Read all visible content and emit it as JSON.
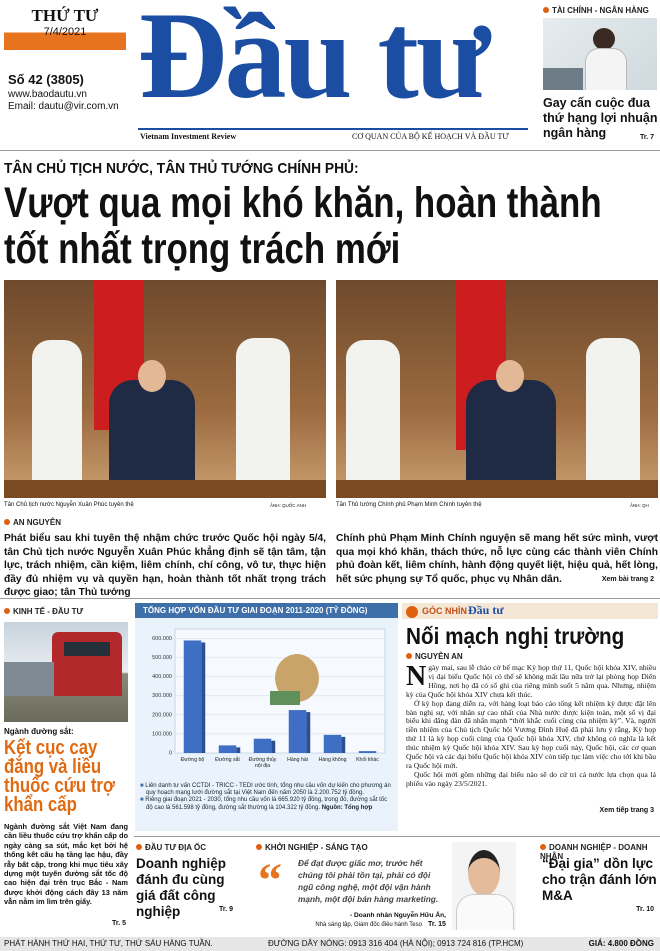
{
  "masthead": {
    "day": "THỨ TƯ",
    "date": "7/4/2021",
    "issue": "Số 42 (3805)",
    "website": "www.baodautu.vn",
    "email": "Email: dautu@vir.com.vn",
    "title": "Đầu tư",
    "subtitle_en": "Vietnam Investment Review",
    "agency": "CƠ QUAN CỦA BỘ KẾ HOẠCH VÀ ĐẦU TƯ"
  },
  "teaser": {
    "section": "TÀI CHÍNH - NGÂN HÀNG",
    "headline": "Gay cấn cuộc đua thứ hạng lợi nhuận ngân hàng",
    "page": "Tr. 7"
  },
  "main": {
    "kicker": "TÂN CHỦ TỊCH NƯỚC, TÂN THỦ TƯỚNG CHÍNH PHỦ:",
    "headline": "Vượt qua mọi khó khăn, hoàn thành tốt nhất trọng trách mới",
    "captions": [
      {
        "text": "Tân Chủ tịch nước Nguyễn Xuân Phúc tuyên thệ",
        "credit": "ẢNH: QUỐC ANH"
      },
      {
        "text": "Tân Thủ tướng Chính phủ Phạm Minh Chính tuyên thệ",
        "credit": "ẢNH: QH"
      }
    ],
    "author": "AN NGUYÊN",
    "lead": [
      "Phát biểu sau khi tuyên thệ nhậm chức trước Quốc hội ngày 5/4, tân Chủ tịch nước Nguyễn Xuân Phúc khẳng định sẽ tận tâm, tận lực, trách nhiệm, cần kiệm, liêm chính, chí công, vô tư, thực hiện đầy đủ nhiệm vụ và quyền hạn, hoàn thành tốt nhất trọng trách được giao; tân Thủ tướng",
      "Chính phủ Phạm Minh Chính nguyện sẽ mang hết sức mình, vượt qua mọi khó khăn, thách thức, nỗ lực cùng các thành viên Chính phủ đoàn kết, liêm chính, hành động quyết liệt, hiệu quả, hết lòng, hết sức phụng sự Tổ quốc, phục vụ Nhân dân."
    ],
    "more": "Xem bài trang 2"
  },
  "rail": {
    "section": "KINH TẾ - ĐẦU TƯ",
    "kicker": "Ngành đường sắt:",
    "headline": "Kết cục cay đắng và liều thuốc cứu trợ khẩn cấp",
    "body": "Ngành đường sắt Việt Nam đang cần liều thuốc cứu trợ khẩn cấp do ngày càng sa sút, mắc kẹt bởi hệ thống kết cấu hạ tầng lạc hậu, đầy rẫy bất cập, trong khi mục tiêu xây dựng một tuyến đường sắt tốc độ cao hiện đại trên trục Bắc - Nam được khởi động cách đây 13 năm vẫn nằm im lìm trên giấy.",
    "page": "Tr. 5"
  },
  "chart_data": {
    "type": "bar",
    "title": "TỔNG HỢP VỐN ĐẦU TƯ GIAI ĐOẠN 2011-2020 (TỶ ĐỒNG)",
    "categories": [
      "Đường bộ",
      "Đường sắt",
      "Đường thủy nội địa",
      "Hàng hải",
      "Hàng không",
      "Khối khác"
    ],
    "values": [
      590000,
      40000,
      75000,
      225000,
      95000,
      10000
    ],
    "color": "#3f6fc4",
    "ylim": [
      0,
      650000
    ],
    "yticks": [
      0,
      {
        "value": 100000,
        "label": "100.000"
      },
      {
        "value": 200000,
        "label": "200.000"
      },
      {
        "value": 300000,
        "label": "300.000"
      },
      {
        "value": 400000,
        "label": "400.000"
      },
      {
        "value": 500000,
        "label": "500.000"
      },
      {
        "value": 600000,
        "label": "600.000"
      }
    ],
    "grid": true,
    "notes": [
      "Liên danh tư vấn CCTDI - TRICC - TEDI ước tính, tổng nhu cầu vốn dự kiến cho phương án quy hoạch mạng lưới đường sắt tại Việt Nam đến năm 2050 là 2.200.752 tỷ đồng.",
      "Riêng giai đoạn 2021 - 2030, tổng nhu cầu vốn là 665.920 tỷ đồng, trong đó, đường sắt tốc độ cao là 561.598 tỷ đồng, đường sắt thường là 104.322 tỷ đồng."
    ],
    "source": "Nguồn: Tổng hợp"
  },
  "opinion": {
    "section": "GÓC NHÌN",
    "brand": "Đầu tư",
    "headline": "Nối mạch nghị trường",
    "author": "NGUYỄN AN",
    "paragraphs": [
      "Ngày mai, sau lễ chào cờ bế mạc Kỳ họp thứ 11, Quốc hội khóa XIV, nhiều vị đại biểu Quốc hội có thể sẽ không mất lâu nữa trở lại phòng họp Diên Hồng, nơi họ đã có sổ ghi của riêng mình suốt 5 năm qua. Nhưng, nhiệm kỳ của Quốc hội khóa XIV chưa kết thúc.",
      "Ở kỳ họp đang diễn ra, với hàng loạt báo cáo tổng kết nhiệm kỳ được đặt lên bàn nghị sự, với nhân sự cao nhất của Nhà nước được kiện toàn, một số vị đại biểu khi đăng đàn đã nhấn mạnh “thời khắc cuối cùng của nhiệm kỳ”. Và, người tiền nhiệm của Chủ tịch Quốc hội Vương Đình Huệ đã phải lưu ý rằng, Kỳ họp thứ 11 là kỳ họp cuối cùng của Quốc hội khóa XIV, chứ không có nghĩa là kết thúc nhiệm kỳ Quốc hội khóa XIV. Sau kỳ họp cuối này, Quốc hội, các cơ quan Quốc hội và các đại biểu Quốc hội khóa XIV còn tiếp tục làm việc cho tới khi bầu ra Quốc hội mới.",
      "Quốc hội mới gồm những đại biểu nào sẽ do cử tri cả nước lựa chọn qua lá phiếu vào ngày 23/5/2021."
    ],
    "more": "Xem tiếp trang 3"
  },
  "bottom": [
    {
      "section": "ĐẦU TƯ ĐỊA ỐC",
      "headline": "Doanh nghiệp đánh đu cùng giá đất công nghiệp",
      "page": "Tr. 9"
    },
    {
      "section": "KHỞI NGHIỆP - SÁNG TẠO",
      "quote": "Để đạt được giấc mơ, trước hết chúng tôi phải tồn tại, phải có đội ngũ công nghệ, một đội vận hành mạnh, một đội bán hàng marketing.",
      "speaker": "- Doanh nhân  Nguyễn Hữu Ấn,",
      "role": "Nhà sáng lập, Giám đốc điều hành Teso",
      "page": "Tr. 15"
    },
    {
      "section": "DOANH NGHIỆP - DOANH NHÂN",
      "headline": "“Đại gia” dồn lực cho trận đánh lớn M&A",
      "page": "Tr. 10"
    }
  ],
  "footer": {
    "schedule": "PHÁT HÀNH THỨ HAI, THỨ TƯ, THỨ SÁU HÀNG TUẦN.",
    "hotline": "ĐƯỜNG DÂY NÓNG: 0913 316 404 (HÀ NỘI); 0913 724 816 (TP.HCM)",
    "price": "GIÁ: 4.800 ĐỒNG"
  }
}
